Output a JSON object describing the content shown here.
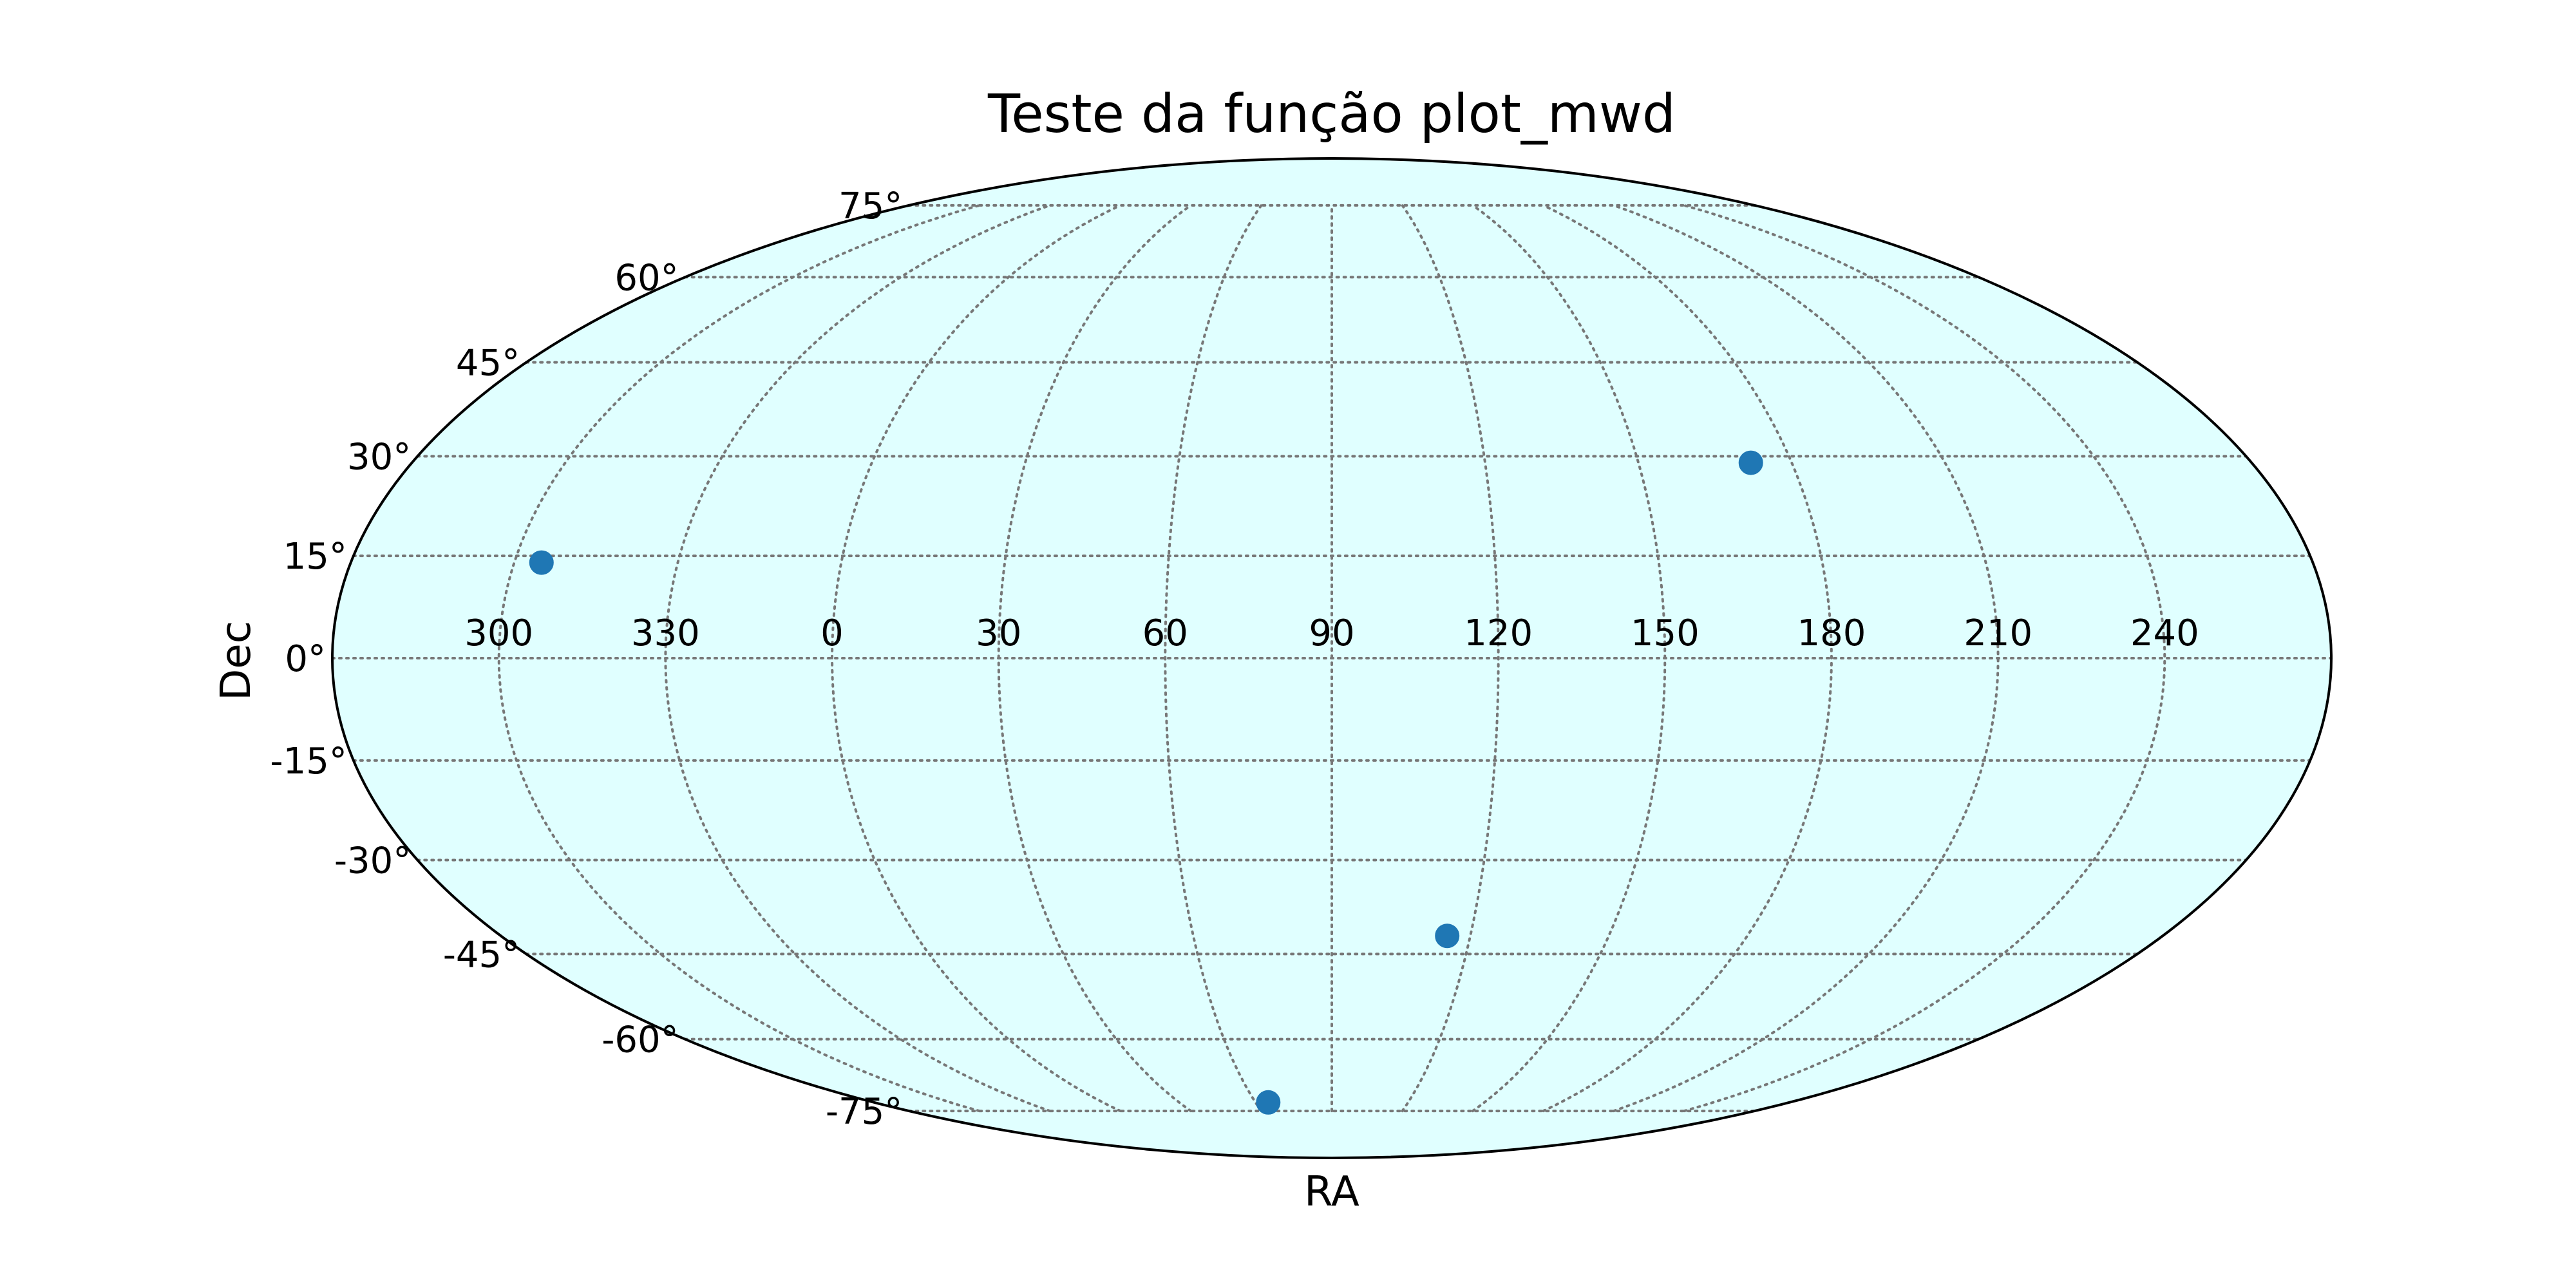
{
  "chart_data": {
    "type": "scatter",
    "projection": "mollweide",
    "title": "Teste da função plot_mwd",
    "xlabel": "RA",
    "ylabel": "Dec",
    "background_color": "#e0ffff",
    "marker_color": "#1f77b4",
    "grid": true,
    "grid_style": "dotted",
    "org": 90,
    "ra_tick_labels": [
      "240",
      "210",
      "180",
      "150",
      "120",
      "90",
      "60",
      "30",
      "0",
      "330",
      "300"
    ],
    "dec_tick_labels": [
      "75°",
      "60°",
      "45°",
      "30°",
      "15°",
      "0°",
      "-15°",
      "-30°",
      "-45°",
      "-60°",
      "-75°"
    ],
    "points": [
      {
        "ra": 235,
        "dec": 14
      },
      {
        "ra": 8,
        "dec": 29
      },
      {
        "ra": 65,
        "dec": -42
      },
      {
        "ra": 115,
        "dec": -73
      }
    ]
  }
}
